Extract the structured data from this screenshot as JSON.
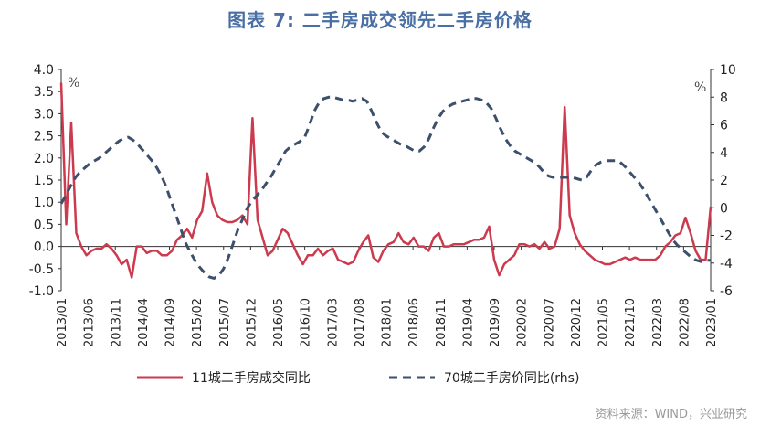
{
  "header": {
    "title": "图表 7:   二手房成交领先二手房价格"
  },
  "footer": {
    "source": "资料来源：WIND，兴业研究"
  },
  "chart_data": {
    "type": "line",
    "title": "图表 7:   二手房成交领先二手房价格",
    "left_unit": "%",
    "right_unit": "%",
    "ylim_left": [
      -1.0,
      4.0
    ],
    "yticks_left": [
      "4.0",
      "3.5",
      "3.0",
      "2.5",
      "2.0",
      "1.5",
      "1.0",
      "0.5",
      "0.0",
      "-0.5",
      "-1.0"
    ],
    "ylim_right": [
      -6,
      10
    ],
    "yticks_right": [
      "10",
      "8",
      "6",
      "4",
      "2",
      "0",
      "-2",
      "-4",
      "-6"
    ],
    "x_tick_labels": [
      "2013/01",
      "2013/06",
      "2013/11",
      "2014/04",
      "2014/09",
      "2015/02",
      "2015/07",
      "2015/12",
      "2016/05",
      "2016/10",
      "2017/03",
      "2017/08",
      "2018/01",
      "2018/06",
      "2018/11",
      "2019/04",
      "2019/09",
      "2020/02",
      "2020/07",
      "2020/12",
      "2021/05",
      "2021/10",
      "2022/03",
      "2022/08",
      "2023/01"
    ],
    "x_start": "2013/01",
    "x_end": "2023/01",
    "legend_position": "bottom",
    "series": [
      {
        "name": "11城二手房成交同比",
        "axis": "left",
        "color": "#cc3a4e",
        "style": "solid",
        "values": [
          3.7,
          0.5,
          2.8,
          0.3,
          0.0,
          -0.2,
          -0.1,
          -0.05,
          -0.05,
          0.05,
          -0.05,
          -0.2,
          -0.4,
          -0.3,
          -0.7,
          0.0,
          0.0,
          -0.15,
          -0.1,
          -0.1,
          -0.2,
          -0.2,
          -0.1,
          0.15,
          0.25,
          0.4,
          0.2,
          0.6,
          0.8,
          1.65,
          1.0,
          0.7,
          0.6,
          0.55,
          0.55,
          0.6,
          0.7,
          0.5,
          2.9,
          0.6,
          0.2,
          -0.2,
          -0.1,
          0.15,
          0.4,
          0.3,
          0.05,
          -0.2,
          -0.4,
          -0.2,
          -0.2,
          -0.05,
          -0.2,
          -0.1,
          -0.05,
          -0.3,
          -0.35,
          -0.4,
          -0.35,
          -0.1,
          0.1,
          0.25,
          -0.25,
          -0.35,
          -0.1,
          0.05,
          0.1,
          0.3,
          0.1,
          0.05,
          0.2,
          0.0,
          0.0,
          -0.1,
          0.2,
          0.3,
          0.0,
          0.0,
          0.05,
          0.05,
          0.05,
          0.1,
          0.15,
          0.15,
          0.2,
          0.45,
          -0.3,
          -0.65,
          -0.4,
          -0.3,
          -0.2,
          0.05,
          0.05,
          0.0,
          0.05,
          -0.05,
          0.1,
          -0.05,
          0.0,
          0.4,
          3.15,
          0.7,
          0.3,
          0.05,
          -0.1,
          -0.2,
          -0.3,
          -0.35,
          -0.4,
          -0.4,
          -0.35,
          -0.3,
          -0.25,
          -0.3,
          -0.25,
          -0.3,
          -0.3,
          -0.3,
          -0.3,
          -0.2,
          0.0,
          0.1,
          0.25,
          0.3,
          0.65,
          0.3,
          -0.1,
          -0.3,
          -0.3,
          0.9
        ]
      },
      {
        "name": "70城二手房价同比(rhs)",
        "axis": "right",
        "color": "#3c4f6b",
        "style": "dashed",
        "values": [
          0.3,
          0.9,
          1.6,
          2.2,
          2.6,
          2.9,
          3.2,
          3.4,
          3.6,
          3.9,
          4.2,
          4.5,
          4.8,
          5.0,
          5.1,
          4.9,
          4.6,
          4.2,
          3.8,
          3.4,
          2.9,
          2.3,
          1.5,
          0.5,
          -0.5,
          -1.5,
          -2.5,
          -3.2,
          -3.8,
          -4.3,
          -4.7,
          -5.0,
          -5.1,
          -4.9,
          -4.4,
          -3.6,
          -2.6,
          -1.6,
          -0.8,
          0.0,
          0.5,
          0.9,
          1.3,
          1.8,
          2.3,
          2.9,
          3.5,
          4.1,
          4.4,
          4.6,
          4.8,
          5.1,
          6.0,
          7.0,
          7.6,
          7.9,
          8.0,
          8.0,
          7.9,
          7.8,
          7.8,
          7.7,
          7.8,
          7.9,
          7.7,
          7.0,
          6.2,
          5.5,
          5.2,
          5.0,
          4.8,
          4.6,
          4.5,
          4.3,
          4.1,
          4.1,
          4.4,
          5.0,
          5.8,
          6.5,
          7.0,
          7.3,
          7.5,
          7.6,
          7.7,
          7.8,
          7.9,
          7.9,
          7.8,
          7.6,
          7.2,
          6.5,
          5.7,
          5.0,
          4.5,
          4.1,
          3.9,
          3.7,
          3.5,
          3.3,
          3.0,
          2.6,
          2.3,
          2.2,
          2.2,
          2.2,
          2.2,
          2.2,
          2.1,
          2.0,
          2.2,
          2.7,
          3.1,
          3.3,
          3.4,
          3.4,
          3.4,
          3.3,
          3.0,
          2.6,
          2.2,
          1.8,
          1.3,
          0.7,
          0.1,
          -0.5,
          -1.1,
          -1.7,
          -2.3,
          -2.7,
          -3.0,
          -3.3,
          -3.6,
          -3.8,
          -3.9,
          -3.8,
          -3.8
        ]
      }
    ]
  }
}
